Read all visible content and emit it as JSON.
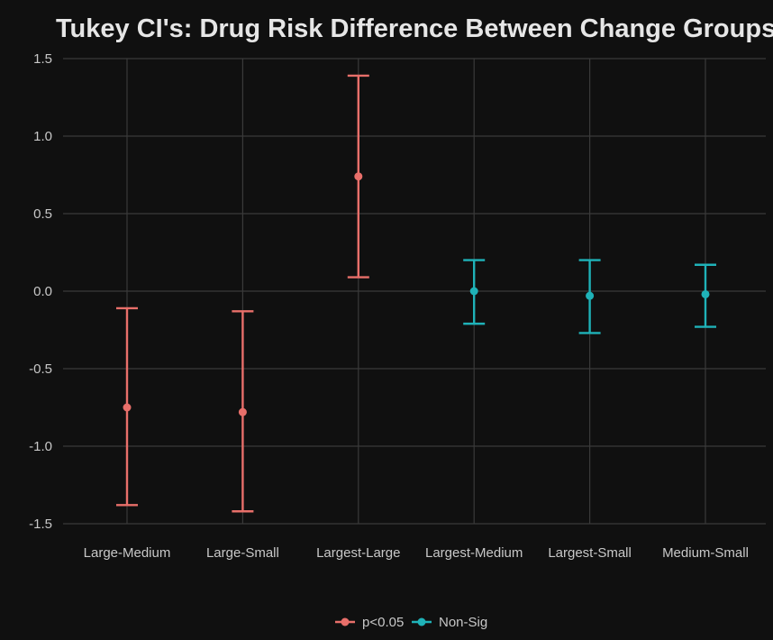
{
  "chart_data": {
    "type": "errorbar",
    "title": "Tukey CI's: Drug Risk Difference Between Change Groups",
    "xlabel": "",
    "ylabel": "",
    "ylim": [
      -1.5,
      1.5
    ],
    "yticks": [
      "1.5",
      "1.0",
      "0.5",
      "0.0",
      "-0.5",
      "-1.0",
      "-1.5"
    ],
    "ytick_values": [
      1.5,
      1.0,
      0.5,
      0.0,
      -0.5,
      -1.0,
      -1.5
    ],
    "categories": [
      "Large-Medium",
      "Large-Small",
      "Largest-Large",
      "Largest-Medium",
      "Largest-Small",
      "Medium-Small"
    ],
    "estimates": [
      -0.75,
      -0.78,
      0.74,
      0.0,
      -0.03,
      -0.02
    ],
    "lower": [
      -1.38,
      -1.42,
      0.09,
      -0.21,
      -0.27,
      -0.23
    ],
    "upper": [
      -0.11,
      -0.13,
      1.39,
      0.2,
      0.2,
      0.17
    ],
    "group": [
      "p<0.05",
      "p<0.05",
      "p<0.05",
      "Non-Sig",
      "Non-Sig",
      "Non-Sig"
    ],
    "legend": [
      {
        "label": "p<0.05",
        "color": "#e86f6a"
      },
      {
        "label": "Non-Sig",
        "color": "#1fb2b8"
      }
    ],
    "legend_position": "bottom",
    "grid": true,
    "background": "#101010",
    "grid_color": "#3a3a3a"
  }
}
